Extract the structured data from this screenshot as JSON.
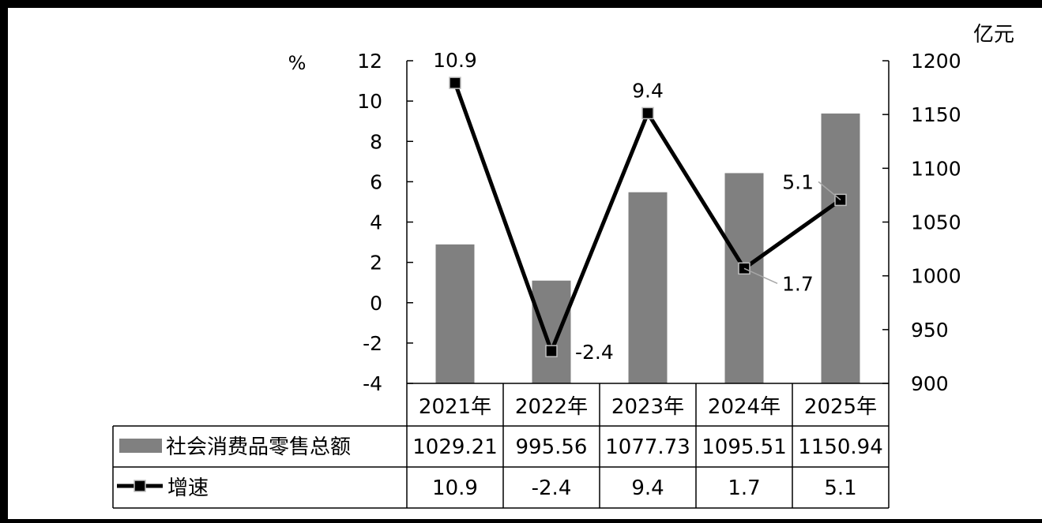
{
  "chart_data": {
    "type": "bar",
    "categories": [
      "2021年",
      "2022年",
      "2023年",
      "2024年",
      "2025年"
    ],
    "series": [
      {
        "name": "社会消费品零售总额",
        "kind": "bar",
        "axis": "right",
        "values": [
          1029.21,
          995.56,
          1077.73,
          1095.51,
          1150.94
        ],
        "value_labels": [
          "1029.21",
          "995.56",
          "1077.73",
          "1095.51",
          "1150.94"
        ],
        "color": "#808080"
      },
      {
        "name": "增速",
        "kind": "line",
        "axis": "left",
        "values": [
          10.9,
          -2.4,
          9.4,
          1.7,
          5.1
        ],
        "value_labels": [
          "10.9",
          "-2.4",
          "9.4",
          "1.7",
          "5.1"
        ],
        "color": "#000000"
      }
    ],
    "left_axis": {
      "unit": "%",
      "ylim": [
        -4,
        12
      ],
      "ticks": [
        12,
        10,
        8,
        6,
        4,
        2,
        0,
        -2,
        -4
      ],
      "tick_labels": [
        "12",
        "10",
        "8",
        "6",
        "4",
        "2",
        "0",
        "-2",
        "-4"
      ]
    },
    "right_axis": {
      "unit": "亿元",
      "ylim": [
        900,
        1200
      ],
      "ticks": [
        1200,
        1150,
        1100,
        1050,
        1000,
        950,
        900
      ],
      "tick_labels": [
        "1200",
        "1150",
        "1100",
        "1050",
        "1000",
        "950",
        "900"
      ]
    },
    "grid": false,
    "legend": "data-table"
  }
}
